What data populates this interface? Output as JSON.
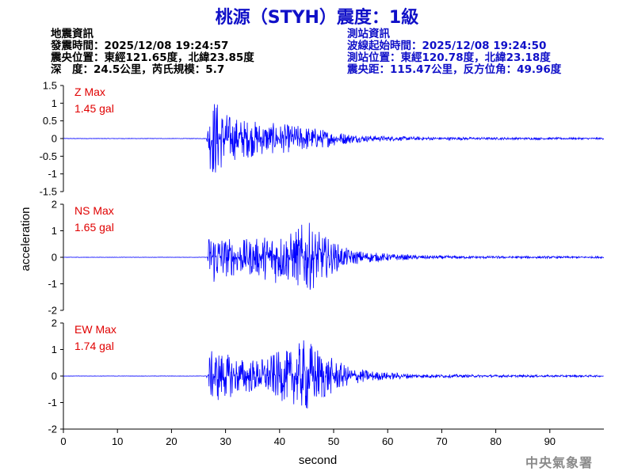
{
  "title": "桃源（STYH）震度：1級",
  "earthquake_info": {
    "heading": "地震資訊",
    "time": "發震時間：2025/12/08 19:24:57",
    "location": "震央位置：東經121.65度，北緯23.85度",
    "depth_magnitude": "深　度：24.5公里，芮氏規模：5.7"
  },
  "station_info": {
    "heading": "測站資訊",
    "wave_start": "波線起始時間：2025/12/08 19:24:50",
    "location": "測站位置：東經120.78度，北緯23.18度",
    "distance": "震央距：115.47公里，反方位角：49.96度"
  },
  "watermark": "中央氣象署",
  "chart_data": {
    "type": "line",
    "xlabel": "second",
    "ylabel": "acceleration",
    "xlim": [
      0,
      100
    ],
    "x_ticks": [
      0,
      10,
      20,
      30,
      40,
      50,
      60,
      70,
      80,
      90
    ],
    "line_color": "#0000ff",
    "label_color": "#e00000",
    "onset_seconds": 26.5,
    "panels": [
      {
        "name": "Z Max",
        "max_label": "1.45 gal",
        "max_value": 1.45,
        "ylim": [
          -1.5,
          1.5
        ],
        "y_ticks": [
          1.5,
          1,
          0.5,
          0,
          -0.5,
          -1,
          -1.5
        ],
        "envelope": [
          [
            26.5,
            0.05
          ],
          [
            27,
            1.0
          ],
          [
            28,
            1.45
          ],
          [
            29,
            1.1
          ],
          [
            31,
            0.75
          ],
          [
            34,
            0.65
          ],
          [
            37,
            0.55
          ],
          [
            40,
            0.5
          ],
          [
            45,
            0.42
          ],
          [
            50,
            0.25
          ],
          [
            55,
            0.12
          ],
          [
            60,
            0.08
          ],
          [
            70,
            0.05
          ],
          [
            80,
            0.04
          ],
          [
            100,
            0.03
          ]
        ]
      },
      {
        "name": "NS Max",
        "max_label": "1.65 gal",
        "max_value": 1.65,
        "ylim": [
          -2,
          2
        ],
        "y_ticks": [
          2,
          1,
          0,
          -1,
          -2
        ],
        "envelope": [
          [
            26.5,
            0.05
          ],
          [
            27,
            1.2
          ],
          [
            28,
            1.3
          ],
          [
            30,
            0.9
          ],
          [
            33,
            0.8
          ],
          [
            36,
            0.85
          ],
          [
            39,
            1.2
          ],
          [
            42,
            1.1
          ],
          [
            45,
            1.65
          ],
          [
            47,
            1.2
          ],
          [
            50,
            0.7
          ],
          [
            53,
            0.35
          ],
          [
            58,
            0.2
          ],
          [
            65,
            0.1
          ],
          [
            75,
            0.06
          ],
          [
            100,
            0.04
          ]
        ]
      },
      {
        "name": "EW Max",
        "max_label": "1.74 gal",
        "max_value": 1.74,
        "ylim": [
          -2,
          2
        ],
        "y_ticks": [
          2,
          1,
          0,
          -1,
          -2
        ],
        "envelope": [
          [
            26.5,
            0.05
          ],
          [
            27,
            1.0
          ],
          [
            28,
            1.25
          ],
          [
            30,
            1.0
          ],
          [
            33,
            0.8
          ],
          [
            36,
            0.75
          ],
          [
            40,
            1.1
          ],
          [
            42,
            1.15
          ],
          [
            45,
            1.74
          ],
          [
            47,
            1.3
          ],
          [
            50,
            0.75
          ],
          [
            53,
            0.4
          ],
          [
            58,
            0.2
          ],
          [
            65,
            0.1
          ],
          [
            75,
            0.06
          ],
          [
            100,
            0.04
          ]
        ]
      }
    ]
  }
}
